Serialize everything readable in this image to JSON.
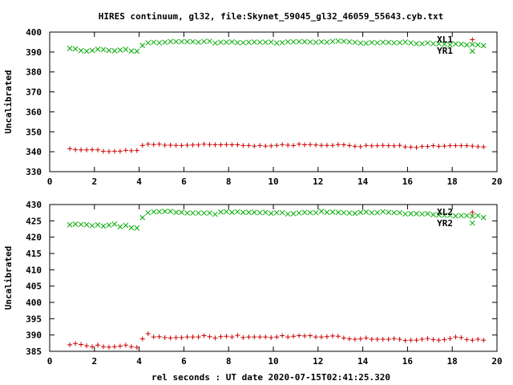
{
  "title": "HIRES continuum, gl32, file:Skynet_59045_gl32_46059_55643.cyb.txt",
  "xlabel": "rel seconds : UT date 2020-07-15T02:41:25.320",
  "colors": {
    "red": "#cc0000",
    "green": "#00aa00",
    "axis": "#000000"
  },
  "chart_data": [
    {
      "type": "scatter",
      "ylabel": "Uncalibrated",
      "xlim": [
        0,
        20
      ],
      "ylim": [
        330,
        400
      ],
      "xticks": [
        0,
        2,
        4,
        6,
        8,
        10,
        12,
        14,
        16,
        18,
        20
      ],
      "yticks": [
        330,
        340,
        350,
        360,
        370,
        380,
        390,
        400
      ],
      "grid": false,
      "legend": "top-right",
      "x": [
        0.9,
        1.15,
        1.4,
        1.65,
        1.9,
        2.15,
        2.4,
        2.65,
        2.9,
        3.15,
        3.4,
        3.65,
        3.9,
        4.15,
        4.4,
        4.65,
        4.9,
        5.15,
        5.4,
        5.65,
        5.9,
        6.15,
        6.4,
        6.65,
        6.9,
        7.15,
        7.4,
        7.65,
        7.9,
        8.15,
        8.4,
        8.65,
        8.9,
        9.15,
        9.4,
        9.65,
        9.9,
        10.15,
        10.4,
        10.65,
        10.9,
        11.15,
        11.4,
        11.65,
        11.9,
        12.15,
        12.4,
        12.65,
        12.9,
        13.15,
        13.4,
        13.65,
        13.9,
        14.15,
        14.4,
        14.65,
        14.9,
        15.15,
        15.4,
        15.65,
        15.9,
        16.15,
        16.4,
        16.65,
        16.9,
        17.15,
        17.4,
        17.65,
        17.9,
        18.15,
        18.4,
        18.65,
        18.9,
        19.15,
        19.4
      ],
      "series": [
        {
          "name": "XL1",
          "color": "red",
          "marker": "plus",
          "values": [
            341.5,
            341,
            340.9,
            340.9,
            341,
            340.9,
            340.2,
            340.1,
            340.2,
            340.2,
            340.7,
            340.5,
            340.6,
            343.2,
            343.8,
            343.6,
            343.8,
            343.3,
            343.3,
            343.2,
            343.1,
            343.3,
            343.4,
            343.4,
            343.8,
            343.6,
            343.5,
            343.5,
            343.6,
            343.5,
            343.5,
            343.1,
            343.1,
            342.8,
            343.1,
            342.8,
            342.9,
            343.2,
            343.6,
            343.3,
            343.1,
            343.8,
            343.5,
            343.6,
            343.4,
            343.2,
            343.2,
            343.2,
            343.6,
            343.5,
            343.1,
            342.7,
            342.5,
            343.1,
            342.9,
            343,
            343.2,
            343,
            342.9,
            343.2,
            342.4,
            342.3,
            342.1,
            342.6,
            342.6,
            343,
            342.7,
            342.8,
            343,
            343,
            343,
            343,
            342.8,
            342.5,
            342.4
          ]
        },
        {
          "name": "YR1",
          "color": "green",
          "marker": "cross",
          "values": [
            391.8,
            391.6,
            390.7,
            390.4,
            390.8,
            391.4,
            391.2,
            390.8,
            390.6,
            391,
            391.3,
            390.5,
            390.4,
            393.3,
            394.6,
            394.9,
            394.6,
            394.9,
            395.3,
            395.2,
            395.2,
            395.2,
            395.2,
            394.9,
            395.3,
            395.4,
            394.5,
            394.9,
            394.9,
            395.1,
            394.7,
            394.7,
            394.9,
            395,
            394.9,
            394.9,
            395,
            394.5,
            394.7,
            395.1,
            395.1,
            395.2,
            395.2,
            395,
            394.9,
            395.1,
            394.9,
            395.3,
            395.5,
            395.4,
            395.1,
            394.9,
            394.5,
            394.4,
            394.8,
            394.6,
            394.9,
            394.8,
            394.6,
            394.7,
            395,
            394.6,
            394.2,
            394.2,
            394.6,
            394.2,
            394.2,
            393.9,
            393.6,
            394.1,
            393.9,
            393.5,
            393.8,
            393.6,
            393.2
          ]
        }
      ]
    },
    {
      "type": "scatter",
      "ylabel": "Uncalibrated",
      "xlim": [
        0,
        20
      ],
      "ylim": [
        385,
        430
      ],
      "xticks": [
        0,
        2,
        4,
        6,
        8,
        10,
        12,
        14,
        16,
        18,
        20
      ],
      "yticks": [
        385,
        390,
        395,
        400,
        405,
        410,
        415,
        420,
        425,
        430
      ],
      "grid": false,
      "legend": "top-right",
      "x": [
        0.9,
        1.15,
        1.4,
        1.65,
        1.9,
        2.15,
        2.4,
        2.65,
        2.9,
        3.15,
        3.4,
        3.65,
        3.9,
        4.15,
        4.4,
        4.65,
        4.9,
        5.15,
        5.4,
        5.65,
        5.9,
        6.15,
        6.4,
        6.65,
        6.9,
        7.15,
        7.4,
        7.65,
        7.9,
        8.15,
        8.4,
        8.65,
        8.9,
        9.15,
        9.4,
        9.65,
        9.9,
        10.15,
        10.4,
        10.65,
        10.9,
        11.15,
        11.4,
        11.65,
        11.9,
        12.15,
        12.4,
        12.65,
        12.9,
        13.15,
        13.4,
        13.65,
        13.9,
        14.15,
        14.4,
        14.65,
        14.9,
        15.15,
        15.4,
        15.65,
        15.9,
        16.15,
        16.4,
        16.65,
        16.9,
        17.15,
        17.4,
        17.65,
        17.9,
        18.15,
        18.4,
        18.65,
        18.9,
        19.15,
        19.4
      ],
      "series": [
        {
          "name": "XL2",
          "color": "red",
          "marker": "plus",
          "values": [
            387,
            387.4,
            387.1,
            386.7,
            386.4,
            386.9,
            386.4,
            386.3,
            386.4,
            386.6,
            386.9,
            386.4,
            386.2,
            388.8,
            390.4,
            389.4,
            389.5,
            389.2,
            389.1,
            389.2,
            389.2,
            389.4,
            389.4,
            389.4,
            389.8,
            389.5,
            389.1,
            389.5,
            389.6,
            389.4,
            389.9,
            389.2,
            389.4,
            389.4,
            389.4,
            389.4,
            389.2,
            389.4,
            389.8,
            389.4,
            389.6,
            389.8,
            389.7,
            389.8,
            389.4,
            389.4,
            389.5,
            389.7,
            389.6,
            389.1,
            388.8,
            388.7,
            388.8,
            389.1,
            388.7,
            388.7,
            388.7,
            388.7,
            388.9,
            388.7,
            388.3,
            388.4,
            388.4,
            388.7,
            388.9,
            388.6,
            388.4,
            388.6,
            388.9,
            389.4,
            389.2,
            388.6,
            388.4,
            388.7,
            388.4
          ]
        },
        {
          "name": "YR2",
          "color": "green",
          "marker": "cross",
          "values": [
            423.8,
            424,
            423.9,
            423.8,
            423.5,
            423.8,
            423.4,
            423.7,
            424,
            423.2,
            423.6,
            422.9,
            422.8,
            426,
            427.5,
            427.8,
            427.8,
            427.9,
            427.9,
            427.6,
            427.6,
            427.4,
            427.4,
            427.4,
            427.4,
            427.4,
            427,
            427.7,
            427.8,
            427.6,
            427.8,
            427.6,
            427.6,
            427.6,
            427.5,
            427.6,
            427.3,
            427.5,
            427.5,
            427.1,
            427.2,
            427.4,
            427.6,
            427.5,
            427.5,
            427.9,
            427.6,
            427.7,
            427.6,
            427.5,
            427.4,
            427.3,
            427.6,
            427.7,
            427.5,
            427.5,
            427.8,
            427.6,
            427.5,
            427.5,
            427.1,
            427.2,
            427.2,
            427.1,
            427.2,
            426.9,
            426.8,
            426.7,
            426.7,
            426.5,
            426.6,
            426.6,
            426.4,
            426.6,
            426
          ]
        }
      ]
    }
  ],
  "outliers": [
    {
      "panel": 0,
      "x": 18.9,
      "red": 396.2,
      "green": 390.4
    },
    {
      "panel": 1,
      "x": 18.9,
      "red": 427.6,
      "green": 424.3
    }
  ]
}
